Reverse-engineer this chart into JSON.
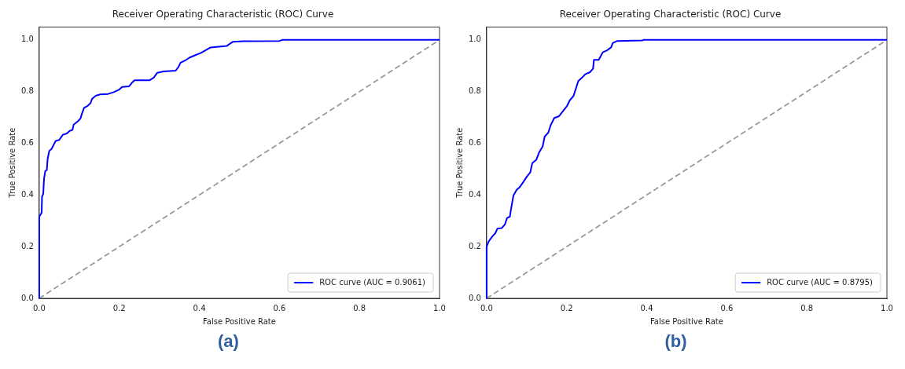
{
  "chart_data": [
    {
      "type": "line",
      "title": "Receiver Operating Characteristic (ROC) Curve",
      "xlabel": "False Positive Rate",
      "ylabel": "True Positive Rate",
      "annotations": [
        "(a)"
      ],
      "xlim": [
        0,
        1
      ],
      "ylim": [
        0,
        1.05
      ],
      "xticks": [
        {
          "value": 0,
          "label": "0.0"
        },
        {
          "value": 0.2,
          "label": "0.2"
        },
        {
          "value": 0.4,
          "label": "0.4"
        },
        {
          "value": 0.6,
          "label": "0.6"
        },
        {
          "value": 0.8,
          "label": "0.8"
        },
        {
          "value": 1,
          "label": "1.0"
        }
      ],
      "yticks": [
        {
          "value": 0,
          "label": "0.0"
        },
        {
          "value": 0.2,
          "label": "0.2"
        },
        {
          "value": 0.4,
          "label": "0.4"
        },
        {
          "value": 0.6,
          "label": "0.6"
        },
        {
          "value": 0.8,
          "label": "0.8"
        },
        {
          "value": 1,
          "label": "1.0"
        }
      ],
      "grid": false,
      "legend": "bottom right",
      "marker": "none",
      "series": [
        {
          "name": "ROC curve (AUC = 0.9061)",
          "color": "#0000ff",
          "line_style": "solid",
          "x": [
            0,
            0,
            0.006,
            0.007,
            0.01,
            0.012,
            0.015,
            0.019,
            0.021,
            0.025,
            0.031,
            0.036,
            0.041,
            0.05,
            0.059,
            0.069,
            0.076,
            0.083,
            0.086,
            0.097,
            0.103,
            0.107,
            0.112,
            0.121,
            0.128,
            0.132,
            0.141,
            0.152,
            0.172,
            0.186,
            0.2,
            0.207,
            0.224,
            0.231,
            0.238,
            0.276,
            0.286,
            0.295,
            0.31,
            0.341,
            0.348,
            0.353,
            0.366,
            0.376,
            0.39,
            0.403,
            0.417,
            0.428,
            0.448,
            0.469,
            0.476,
            0.484,
            0.51,
            0.6,
            0.607,
            1
          ],
          "values": [
            0,
            0.316,
            0.331,
            0.394,
            0.404,
            0.463,
            0.492,
            0.497,
            0.54,
            0.57,
            0.579,
            0.594,
            0.609,
            0.613,
            0.633,
            0.638,
            0.648,
            0.652,
            0.672,
            0.686,
            0.696,
            0.716,
            0.737,
            0.745,
            0.755,
            0.772,
            0.784,
            0.789,
            0.791,
            0.798,
            0.808,
            0.818,
            0.82,
            0.833,
            0.844,
            0.844,
            0.854,
            0.873,
            0.878,
            0.881,
            0.896,
            0.912,
            0.922,
            0.932,
            0.941,
            0.949,
            0.961,
            0.971,
            0.974,
            0.977,
            0.985,
            0.993,
            0.995,
            0.996,
            1,
            1
          ]
        },
        {
          "color": "#999999",
          "line_style": "dashed",
          "x": [
            0,
            1
          ],
          "values": [
            0,
            1
          ]
        }
      ]
    },
    {
      "type": "line",
      "title": "Receiver Operating Characteristic (ROC) Curve",
      "xlabel": "False Positive Rate",
      "ylabel": "True Positive Rate",
      "annotations": [
        "(b)"
      ],
      "xlim": [
        0,
        1
      ],
      "ylim": [
        0,
        1.05
      ],
      "xticks": [
        {
          "value": 0,
          "label": "0.0"
        },
        {
          "value": 0.2,
          "label": "0.2"
        },
        {
          "value": 0.4,
          "label": "0.4"
        },
        {
          "value": 0.6,
          "label": "0.6"
        },
        {
          "value": 0.8,
          "label": "0.8"
        },
        {
          "value": 1,
          "label": "1.0"
        }
      ],
      "yticks": [
        {
          "value": 0,
          "label": "0.0"
        },
        {
          "value": 0.2,
          "label": "0.2"
        },
        {
          "value": 0.4,
          "label": "0.4"
        },
        {
          "value": 0.6,
          "label": "0.6"
        },
        {
          "value": 0.8,
          "label": "0.8"
        },
        {
          "value": 1,
          "label": "1.0"
        }
      ],
      "grid": false,
      "legend": "bottom right",
      "marker": "none",
      "series": [
        {
          "name": "ROC curve (AUC = 0.8795)",
          "color": "#0000ff",
          "line_style": "solid",
          "x": [
            0,
            0,
            0.005,
            0.014,
            0.022,
            0.027,
            0.038,
            0.046,
            0.051,
            0.058,
            0.061,
            0.067,
            0.075,
            0.083,
            0.092,
            0.101,
            0.109,
            0.114,
            0.124,
            0.131,
            0.14,
            0.145,
            0.154,
            0.16,
            0.169,
            0.181,
            0.191,
            0.201,
            0.208,
            0.217,
            0.222,
            0.229,
            0.239,
            0.247,
            0.258,
            0.266,
            0.268,
            0.28,
            0.29,
            0.3,
            0.311,
            0.315,
            0.326,
            0.389,
            0.392,
            1
          ],
          "values": [
            0,
            0.2,
            0.22,
            0.239,
            0.253,
            0.27,
            0.272,
            0.287,
            0.311,
            0.316,
            0.345,
            0.398,
            0.42,
            0.431,
            0.451,
            0.472,
            0.487,
            0.523,
            0.536,
            0.564,
            0.588,
            0.626,
            0.641,
            0.67,
            0.698,
            0.705,
            0.725,
            0.745,
            0.767,
            0.783,
            0.807,
            0.841,
            0.855,
            0.868,
            0.875,
            0.889,
            0.923,
            0.923,
            0.952,
            0.959,
            0.971,
            0.988,
            0.996,
            0.998,
            1,
            1
          ]
        },
        {
          "color": "#999999",
          "line_style": "dashed",
          "x": [
            0,
            1
          ],
          "values": [
            0,
            1
          ]
        }
      ]
    }
  ]
}
